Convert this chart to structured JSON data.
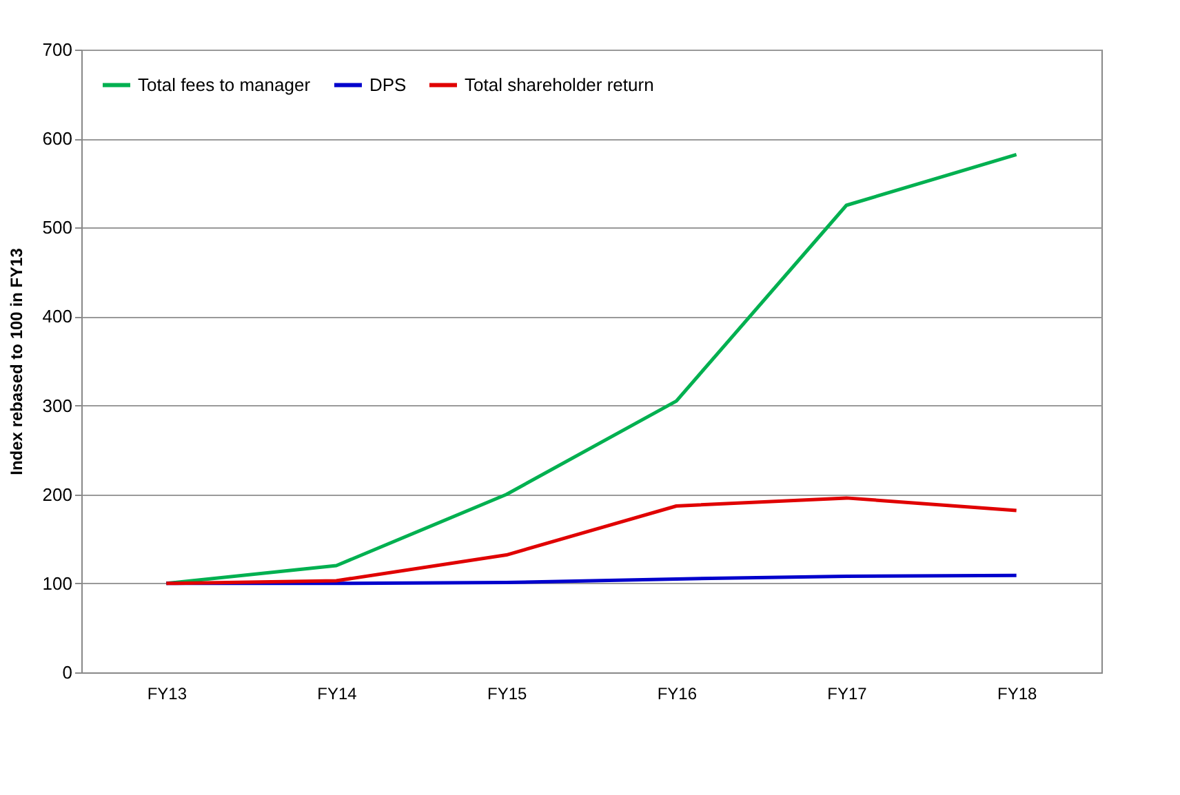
{
  "chart_data": {
    "type": "line",
    "ylabel": "Index rebased to 100 in FY13",
    "categories": [
      "FY13",
      "FY14",
      "FY15",
      "FY16",
      "FY17",
      "FY18"
    ],
    "series": [
      {
        "name": "Total fees to manager",
        "color": "#00b050",
        "values": [
          100,
          120,
          200,
          305,
          525,
          582
        ]
      },
      {
        "name": "DPS",
        "color": "#0000cc",
        "values": [
          100,
          100,
          101,
          105,
          108,
          109
        ]
      },
      {
        "name": "Total shareholder return",
        "color": "#e00000",
        "values": [
          100,
          103,
          132,
          187,
          196,
          182
        ]
      }
    ],
    "ylim": [
      0,
      700
    ],
    "yticks": [
      0,
      100,
      200,
      300,
      400,
      500,
      600,
      700
    ],
    "grid": "y",
    "legend": "top left",
    "marker": "none",
    "line_style": "solid"
  }
}
